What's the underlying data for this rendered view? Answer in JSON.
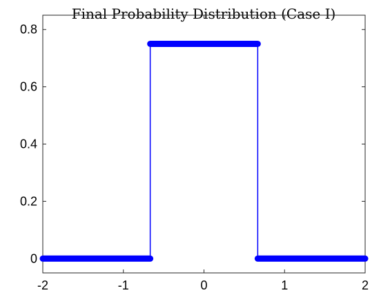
{
  "chart_data": {
    "type": "line",
    "title": "Final Probability Distribution (Case I)",
    "xlabel": "",
    "ylabel": "",
    "xlim": [
      -2,
      2
    ],
    "ylim": [
      -0.05,
      0.85
    ],
    "x_ticks": [
      -2,
      -1,
      0,
      1,
      2
    ],
    "x_tick_labels": [
      "-2",
      "-1",
      "0",
      "1",
      "2"
    ],
    "y_ticks": [
      0,
      0.2,
      0.4,
      0.6,
      0.8
    ],
    "y_tick_labels": [
      "0",
      "0.2",
      "0.4",
      "0.6",
      "0.8"
    ],
    "grid": false,
    "box": true,
    "series": [
      {
        "color": "#0000ff",
        "x": [
          -2,
          -0.667,
          -0.667,
          0.667,
          0.667,
          2
        ],
        "y": [
          0,
          0,
          0.75,
          0.75,
          0,
          0
        ],
        "marker_segments": [
          {
            "x": [
              -2,
              -0.667
            ],
            "y": 0
          },
          {
            "x": [
              -0.667,
              0.667
            ],
            "y": 0.75
          },
          {
            "x": [
              0.667,
              2
            ],
            "y": 0
          }
        ]
      }
    ]
  }
}
